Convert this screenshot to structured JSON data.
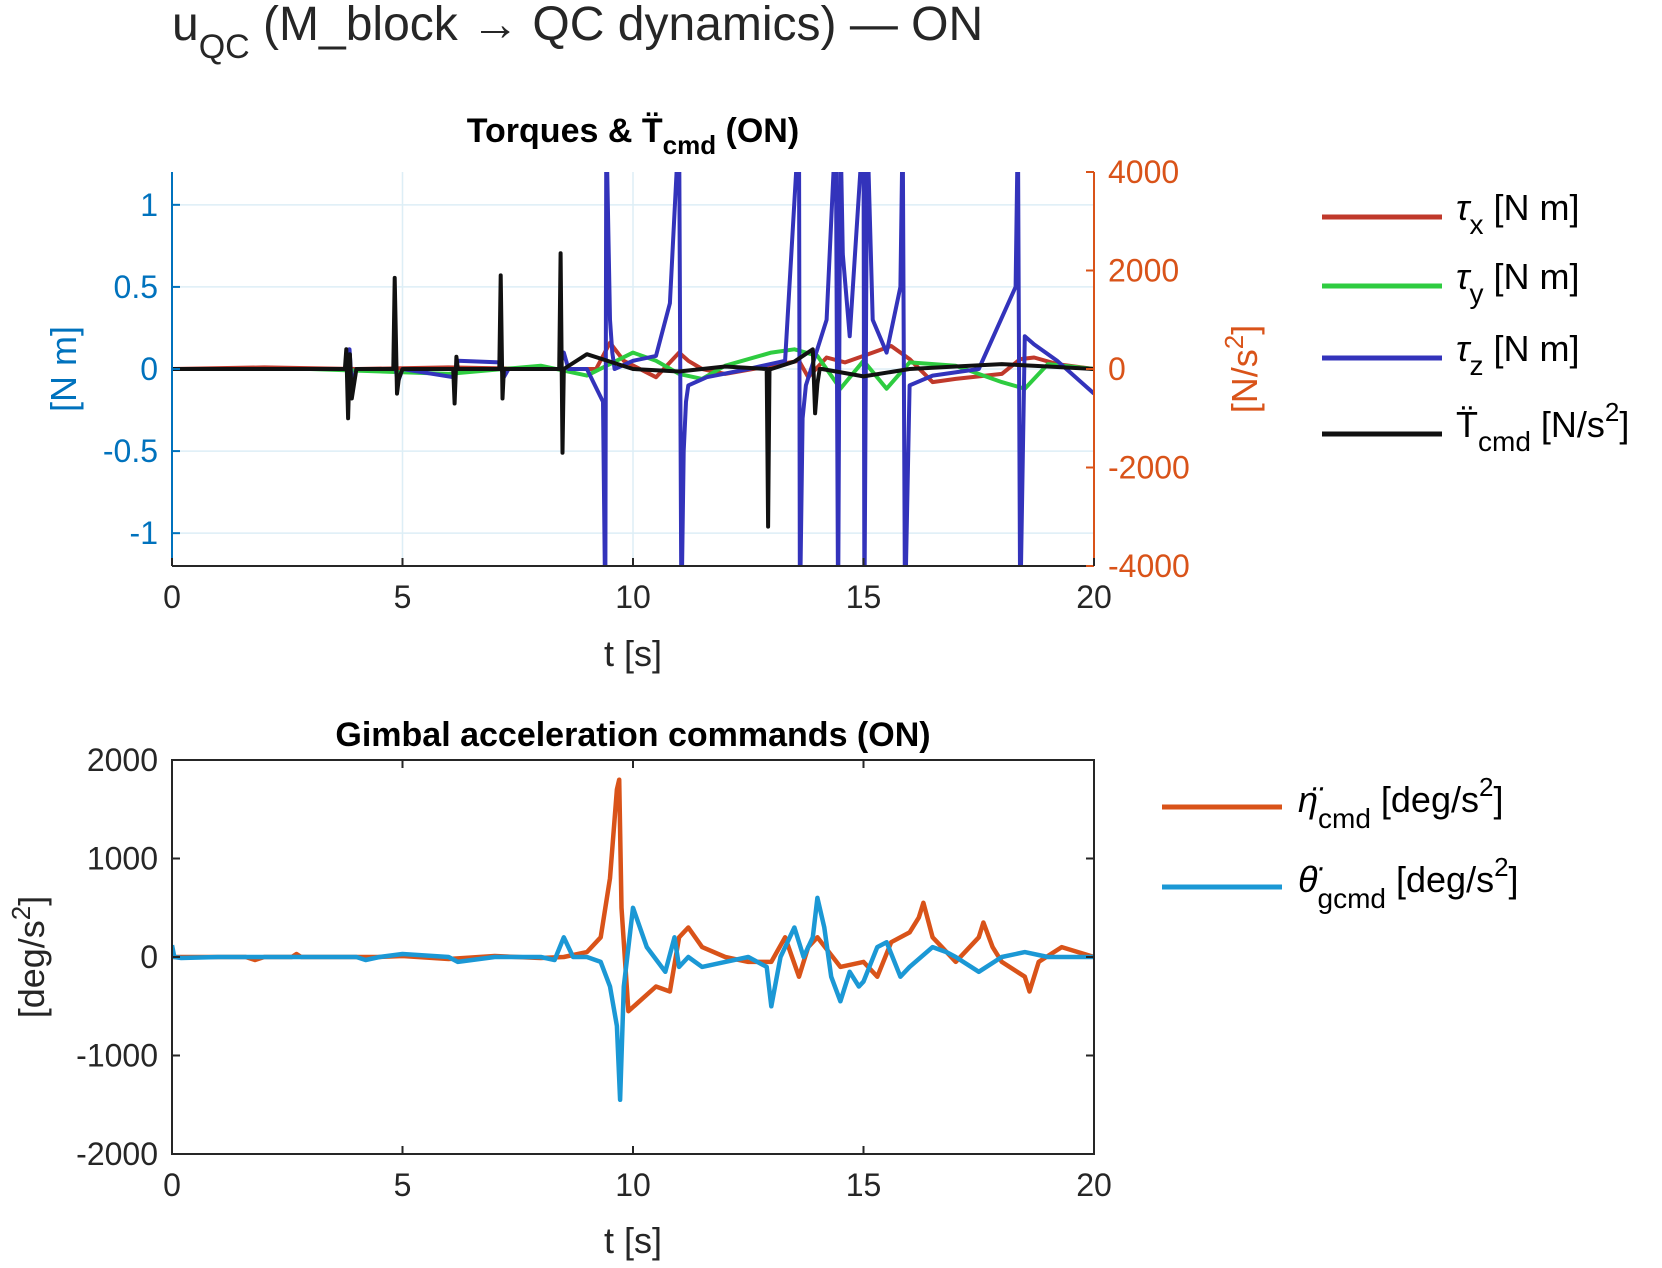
{
  "figure": {
    "suptitle": {
      "main": "u",
      "sub": "QC",
      "rest": " (M_block → QC dynamics) — ON"
    }
  },
  "chart_data": [
    {
      "type": "line",
      "title": {
        "main": "Torques & T̈",
        "sub": "cmd",
        "rest": " (ON)"
      },
      "xlabel": "t [s]",
      "xlim": [
        0,
        20
      ],
      "xticks": [
        "0",
        "5",
        "10",
        "15",
        "20"
      ],
      "ylabel_left": "[N m]",
      "ylim_left": [
        -1.2,
        1.2
      ],
      "yticks_left": [
        {
          "v": 1,
          "label": "1"
        },
        {
          "v": 0.5,
          "label": "0.5"
        },
        {
          "v": 0,
          "label": "0"
        },
        {
          "v": -0.5,
          "label": "-0.5"
        },
        {
          "v": -1,
          "label": "-1"
        }
      ],
      "ylabel_right": {
        "main": "[N/s",
        "sup": "2",
        "rest": "]"
      },
      "ylim_right": [
        -4000,
        4000
      ],
      "yticks_right": [
        "4000",
        "2000",
        "0",
        "-2000",
        "-4000"
      ],
      "grid": true,
      "colors": {
        "left_axis": "#0072BD",
        "right_axis": "#D95319"
      },
      "legend_position": "outside-right",
      "series": [
        {
          "name": {
            "main": "τ",
            "sub": "x",
            "rest": " [N m]"
          },
          "axis": "left",
          "color": "#C0392B",
          "x": [
            0,
            2,
            4,
            6,
            8,
            9.2,
            9.5,
            9.8,
            10.5,
            11.0,
            11.2,
            11.5,
            12,
            13,
            13.6,
            13.8,
            14.2,
            14.6,
            15.2,
            15.6,
            16,
            16.5,
            17,
            18,
            18.4,
            18.7,
            19.2,
            20
          ],
          "y": [
            0,
            0.01,
            0,
            0.01,
            0,
            0,
            0.16,
            0.05,
            -0.05,
            0.1,
            0.05,
            0,
            -0.03,
            0.02,
            0.05,
            -0.05,
            0.07,
            0.04,
            0.1,
            0.14,
            0.06,
            -0.08,
            -0.06,
            -0.03,
            0.06,
            0.07,
            0.03,
            0
          ]
        },
        {
          "name": {
            "main": "τ",
            "sub": "y",
            "rest": " [N m]"
          },
          "axis": "left",
          "color": "#2ECC40",
          "x": [
            0,
            3,
            4,
            5,
            6,
            8,
            9,
            10,
            10.5,
            11,
            11.5,
            12,
            13,
            13.5,
            14,
            14.5,
            15,
            15.5,
            16,
            17,
            18,
            18.5,
            19,
            20
          ],
          "y": [
            0,
            0,
            -0.01,
            -0.02,
            -0.03,
            0.02,
            -0.04,
            0.1,
            0.05,
            -0.03,
            -0.06,
            0.02,
            0.1,
            0.12,
            0.08,
            -0.12,
            0.05,
            -0.12,
            0.04,
            0.02,
            -0.08,
            -0.12,
            0.03,
            0
          ]
        },
        {
          "name": {
            "main": "τ",
            "sub": "z",
            "rest": " [N m]"
          },
          "axis": "left",
          "color": "#3333BB",
          "x": [
            0,
            3.8,
            3.85,
            3.9,
            4.0,
            4.85,
            4.9,
            5.0,
            6.1,
            6.2,
            7.1,
            7.2,
            7.3,
            8.4,
            8.5,
            8.6,
            9.0,
            9.35,
            9.4,
            9.42,
            9.5,
            9.55,
            9.6,
            10.0,
            10.5,
            10.8,
            11.0,
            11.05,
            11.1,
            11.15,
            11.2,
            11.6,
            12.5,
            13.3,
            13.6,
            13.62,
            13.68,
            13.75,
            14.2,
            14.4,
            14.45,
            14.5,
            14.55,
            14.7,
            15.0,
            15.02,
            15.08,
            15.2,
            15.5,
            15.8,
            15.85,
            15.9,
            16.0,
            16.5,
            17.5,
            18.3,
            18.35,
            18.4,
            18.5,
            18.7,
            19.2,
            20
          ],
          "y": [
            0,
            0,
            0.12,
            -0.1,
            0,
            0,
            -0.08,
            0,
            -0.05,
            0.05,
            0.04,
            -0.05,
            0,
            0,
            0.1,
            0,
            0,
            -0.2,
            -1.5,
            1.5,
            0.3,
            0.1,
            0,
            0.05,
            0.08,
            0.4,
            1.5,
            -1.5,
            -0.5,
            -0.2,
            -0.1,
            -0.05,
            0,
            0.05,
            1.5,
            -1.5,
            -0.3,
            -0.1,
            0.3,
            1.5,
            -1.5,
            1.5,
            0.7,
            0.2,
            1.5,
            -1.5,
            1.5,
            0.3,
            0.1,
            0.5,
            1.5,
            -1.5,
            -0.1,
            -0.04,
            0,
            0.5,
            1.5,
            -1.5,
            0.2,
            0.15,
            0.05,
            -0.15
          ]
        },
        {
          "name": {
            "main": "T̈",
            "sub": "cmd",
            "rest": " [N/s",
            "sup": "2",
            "rest2": "]"
          },
          "axis": "right",
          "color": "#111111",
          "x": [
            0,
            3.75,
            3.78,
            3.82,
            3.86,
            3.9,
            4.0,
            4.8,
            4.83,
            4.88,
            4.92,
            5.0,
            6.1,
            6.13,
            6.17,
            6.2,
            7.1,
            7.13,
            7.17,
            7.2,
            8.4,
            8.43,
            8.47,
            8.5,
            9.0,
            9.5,
            10.0,
            11.0,
            12.0,
            12.9,
            12.93,
            12.96,
            13.0,
            13.5,
            13.9,
            13.95,
            14.0,
            14.05,
            14.1,
            15.0,
            16.0,
            17.0,
            18.0,
            19.0,
            20.0
          ],
          "y": [
            0,
            0,
            400,
            -1000,
            300,
            -600,
            0,
            0,
            1850,
            -500,
            -200,
            0,
            0,
            -700,
            250,
            0,
            0,
            1900,
            -600,
            0,
            0,
            2350,
            -1700,
            0,
            300,
            150,
            0,
            -50,
            50,
            0,
            -3200,
            0,
            0,
            150,
            400,
            -900,
            -300,
            0,
            0,
            -150,
            0,
            50,
            100,
            50,
            0
          ]
        }
      ]
    },
    {
      "type": "line",
      "title": "Gimbal acceleration commands (ON)",
      "xlabel": "t [s]",
      "xlim": [
        0,
        20
      ],
      "xticks": [
        "0",
        "5",
        "10",
        "15",
        "20"
      ],
      "ylabel": {
        "main": "[deg/s",
        "sup": "2",
        "rest": "]"
      },
      "ylim": [
        -2000,
        2000
      ],
      "yticks": [
        "2000",
        "1000",
        "0",
        "-1000",
        "-2000"
      ],
      "grid": false,
      "legend_position": "outside-right",
      "series": [
        {
          "name": {
            "main": "η̈",
            "sub": "cmd",
            "rest": " [deg/s",
            "sup": "2",
            "rest2": "]"
          },
          "color": "#D95319",
          "x": [
            0,
            1.6,
            1.8,
            2,
            2.6,
            2.7,
            2.8,
            4.5,
            5,
            6,
            7,
            8,
            8.5,
            9,
            9.3,
            9.5,
            9.65,
            9.7,
            9.75,
            9.9,
            10.5,
            10.8,
            11.0,
            11.2,
            11.5,
            12.0,
            12.5,
            13.0,
            13.3,
            13.6,
            13.8,
            14.0,
            14.5,
            15.0,
            15.3,
            15.6,
            16.0,
            16.2,
            16.3,
            16.5,
            16.7,
            17.0,
            17.5,
            17.6,
            17.8,
            18.0,
            18.5,
            18.6,
            18.8,
            19.3,
            20
          ],
          "y": [
            0,
            0,
            -30,
            0,
            0,
            30,
            0,
            0,
            10,
            -20,
            10,
            -10,
            0,
            50,
            200,
            800,
            1700,
            1800,
            500,
            -550,
            -300,
            -350,
            200,
            300,
            100,
            0,
            -50,
            -50,
            200,
            -200,
            100,
            200,
            -100,
            -50,
            -200,
            150,
            250,
            400,
            550,
            200,
            100,
            -50,
            200,
            350,
            100,
            -50,
            -200,
            -350,
            -50,
            100,
            0
          ]
        },
        {
          "name": {
            "main": "θ̈",
            "sub": "gcmd",
            "rest": " [deg/s",
            "sup": "2",
            "rest2": "]"
          },
          "color": "#1B98D5",
          "x": [
            0,
            0.05,
            0.2,
            1,
            2,
            3,
            4,
            4.2,
            4.5,
            5,
            6,
            6.2,
            7,
            8,
            8.3,
            8.5,
            8.7,
            9,
            9.3,
            9.5,
            9.65,
            9.72,
            9.8,
            10.0,
            10.3,
            10.7,
            10.9,
            11.0,
            11.2,
            11.5,
            12.0,
            12.5,
            12.9,
            13.0,
            13.2,
            13.5,
            13.7,
            13.9,
            14.0,
            14.15,
            14.3,
            14.5,
            14.7,
            14.9,
            15.0,
            15.3,
            15.5,
            15.8,
            16.0,
            16.5,
            16.8,
            17.0,
            17.5,
            18.0,
            18.5,
            19,
            19.5,
            20
          ],
          "y": [
            120,
            0,
            -10,
            0,
            0,
            0,
            0,
            -30,
            0,
            30,
            0,
            -50,
            0,
            0,
            -30,
            200,
            0,
            0,
            -50,
            -300,
            -700,
            -1450,
            -300,
            500,
            100,
            -150,
            200,
            -100,
            0,
            -100,
            -50,
            0,
            -100,
            -500,
            0,
            300,
            0,
            200,
            600,
            300,
            -200,
            -450,
            -150,
            -300,
            -250,
            100,
            150,
            -200,
            -100,
            100,
            50,
            0,
            -150,
            0,
            50,
            0,
            0,
            0
          ]
        }
      ]
    }
  ]
}
